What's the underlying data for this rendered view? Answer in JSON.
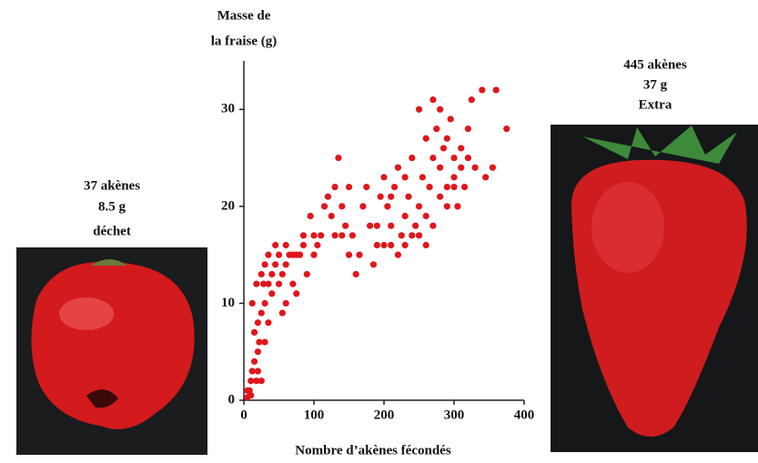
{
  "chart_data": {
    "type": "scatter",
    "y_label_lines": [
      "Masse de",
      "la fraise (g)"
    ],
    "x_label": "Nombre d’akènes fécondés",
    "left_caption": [
      "37 akènes",
      "8.5 g",
      "déchet"
    ],
    "right_caption": [
      "445 akènes",
      "37 g",
      "Extra"
    ],
    "color": "#e0161b",
    "xlim": [
      0,
      400
    ],
    "ylim": [
      0,
      35
    ],
    "xticks": [
      0,
      100,
      200,
      300,
      400
    ],
    "yticks": [
      0,
      10,
      20,
      30
    ],
    "x": [
      5,
      8,
      10,
      12,
      15,
      18,
      20,
      22,
      25,
      15,
      20,
      25,
      30,
      12,
      18,
      28,
      35,
      25,
      40,
      30,
      45,
      35,
      50,
      40,
      50,
      55,
      60,
      65,
      70,
      75,
      80,
      85,
      60,
      70,
      55,
      60,
      75,
      90,
      100,
      100,
      105,
      110,
      115,
      120,
      125,
      130,
      130,
      135,
      140,
      145,
      150,
      155,
      160,
      165,
      170,
      175,
      180,
      185,
      190,
      195,
      200,
      205,
      210,
      215,
      220,
      225,
      230,
      235,
      240,
      245,
      250,
      250,
      255,
      260,
      265,
      270,
      270,
      275,
      280,
      280,
      285,
      290,
      290,
      295,
      300,
      305,
      310,
      315,
      320,
      325,
      330,
      340,
      345,
      355,
      360,
      375,
      200,
      210,
      220,
      230,
      240,
      250,
      260,
      270,
      280,
      290,
      300,
      310,
      260,
      190,
      140,
      95,
      85,
      45,
      35,
      30,
      20,
      10,
      5,
      150,
      210,
      230,
      300,
      320
    ],
    "y": [
      1,
      1,
      2,
      3,
      4,
      2,
      5,
      6,
      2,
      7,
      8,
      9,
      10,
      10,
      12,
      12,
      12,
      13,
      13,
      14,
      14,
      15,
      15,
      11,
      12,
      13,
      14,
      15,
      15,
      15,
      15,
      16,
      16,
      12,
      9,
      10,
      11,
      13,
      15,
      17,
      16,
      17,
      20,
      21,
      19,
      22,
      17,
      25,
      20,
      18,
      22,
      17,
      13,
      15,
      20,
      22,
      18,
      14,
      16,
      21,
      23,
      20,
      18,
      22,
      24,
      17,
      19,
      21,
      25,
      18,
      20,
      30,
      23,
      27,
      22,
      25,
      31,
      28,
      24,
      30,
      26,
      22,
      27,
      29,
      25,
      20,
      26,
      22,
      28,
      31,
      24,
      32,
      23,
      24,
      32,
      28,
      16,
      16,
      15,
      16,
      17,
      17,
      19,
      18,
      21,
      20,
      23,
      24,
      16,
      18,
      17,
      19,
      17,
      16,
      8,
      6,
      3,
      0.5,
      0.3,
      15,
      21,
      23,
      22,
      25
    ]
  }
}
